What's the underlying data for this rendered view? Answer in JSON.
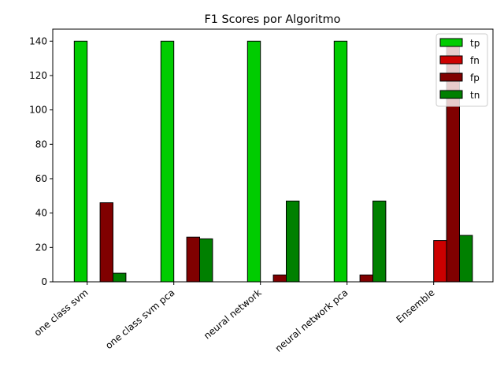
{
  "chart_data": {
    "type": "bar",
    "title": "F1 Scores por Algoritmo",
    "xlabel": "",
    "ylabel": "",
    "categories": [
      "one class svm",
      "one class svm pca",
      "neural network",
      "neural network pca",
      "Ensemble"
    ],
    "series": [
      {
        "name": "tp",
        "color": "#00cc00",
        "values": [
          140,
          140,
          140,
          140,
          0
        ]
      },
      {
        "name": "fn",
        "color": "#cc0000",
        "values": [
          0,
          0,
          0,
          0,
          24
        ]
      },
      {
        "name": "fp",
        "color": "#800000",
        "values": [
          46,
          26,
          4,
          4,
          140
        ]
      },
      {
        "name": "tn",
        "color": "#008000",
        "values": [
          5,
          25,
          47,
          47,
          27
        ]
      }
    ],
    "ylim": [
      0,
      147
    ],
    "y_ticks": [
      0,
      20,
      40,
      60,
      80,
      100,
      120,
      140
    ],
    "grid": false,
    "legend_position": "top-right",
    "bar_edge_color": "#000000"
  }
}
